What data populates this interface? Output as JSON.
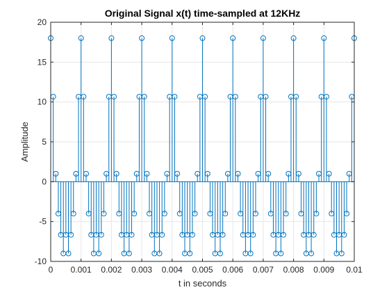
{
  "chart_data": {
    "type": "scatter",
    "style": "stem",
    "title": "Original Signal x(t) time-sampled at 12KHz",
    "xlabel": "t in seconds",
    "ylabel": "Amplitude",
    "xlim": [
      0,
      0.01
    ],
    "ylim": [
      -10,
      20
    ],
    "grid": true,
    "legend": "none",
    "xticks": [
      0,
      0.001,
      0.002,
      0.003,
      0.004,
      0.005,
      0.006,
      0.007,
      0.008,
      0.009,
      0.01
    ],
    "xtick_labels": [
      "0",
      "0.001",
      "0.002",
      "0.003",
      "0.004",
      "0.005",
      "0.006",
      "0.007",
      "0.008",
      "0.009",
      "0.01"
    ],
    "yticks": [
      -10,
      -5,
      0,
      5,
      10,
      15,
      20
    ],
    "ytick_labels": [
      "-10",
      "-5",
      "0",
      "5",
      "10",
      "15",
      "20"
    ],
    "colors": {
      "series": "#0072BD",
      "axes": "#262626",
      "grid": "#e6e6e6",
      "background": "#ffffff"
    },
    "series": [
      {
        "sample_rate_hz": 12000,
        "x": [
          0,
          8.33e-05,
          0.0001667,
          0.00025,
          0.0003333,
          0.0004167,
          0.0005,
          0.0005833,
          0.0006667,
          0.00075,
          0.0008333,
          0.0009167,
          0.001,
          0.0010833,
          0.0011667,
          0.00125,
          0.0013333,
          0.0014167,
          0.0015,
          0.0015833,
          0.0016667,
          0.00175,
          0.0018333,
          0.0019167,
          0.002,
          0.0020833,
          0.0021667,
          0.00225,
          0.0023333,
          0.0024167,
          0.0025,
          0.0025833,
          0.0026667,
          0.00275,
          0.0028333,
          0.0029167,
          0.003,
          0.0030833,
          0.0031667,
          0.00325,
          0.0033333,
          0.0034167,
          0.0035,
          0.0035833,
          0.0036667,
          0.00375,
          0.0038333,
          0.0039167,
          0.004,
          0.0040833,
          0.0041667,
          0.00425,
          0.0043333,
          0.0044167,
          0.0045,
          0.0045833,
          0.0046667,
          0.00475,
          0.0048333,
          0.0049167,
          0.005,
          0.0050833,
          0.0051667,
          0.00525,
          0.0053333,
          0.0054167,
          0.0055,
          0.0055833,
          0.0056667,
          0.00575,
          0.0058333,
          0.0059167,
          0.006,
          0.0060833,
          0.0061667,
          0.00625,
          0.0063333,
          0.0064167,
          0.0065,
          0.0065833,
          0.0066667,
          0.00675,
          0.0068333,
          0.0069167,
          0.007,
          0.0070833,
          0.0071667,
          0.00725,
          0.0073333,
          0.0074167,
          0.0075,
          0.0075833,
          0.0076667,
          0.00775,
          0.0078333,
          0.0079167,
          0.008,
          0.0080833,
          0.0081667,
          0.00825,
          0.0083333,
          0.0084167,
          0.0085,
          0.0085833,
          0.0086667,
          0.00875,
          0.0088333,
          0.0089167,
          0.009,
          0.0090833,
          0.0091667,
          0.00925,
          0.0093333,
          0.0094167,
          0.0095,
          0.0095833,
          0.0096667,
          0.00975,
          0.0098333,
          0.0099167,
          0.01
        ],
        "y": [
          18,
          10.66,
          1,
          -4,
          -6.66,
          -9,
          -6.66,
          -9,
          -6.66,
          -4,
          1,
          10.66,
          18,
          10.66,
          1,
          -4,
          -6.66,
          -9,
          -6.66,
          -9,
          -6.66,
          -4,
          1,
          10.66,
          18,
          10.66,
          1,
          -4,
          -6.66,
          -9,
          -6.66,
          -9,
          -6.66,
          -4,
          1,
          10.66,
          18,
          10.66,
          1,
          -4,
          -6.66,
          -9,
          -6.66,
          -9,
          -6.66,
          -4,
          1,
          10.66,
          18,
          10.66,
          1,
          -4,
          -6.66,
          -9,
          -6.66,
          -9,
          -6.66,
          -4,
          1,
          10.66,
          18,
          10.66,
          1,
          -4,
          -6.66,
          -9,
          -6.66,
          -9,
          -6.66,
          -4,
          1,
          10.66,
          18,
          10.66,
          1,
          -4,
          -6.66,
          -9,
          -6.66,
          -9,
          -6.66,
          -4,
          1,
          10.66,
          18,
          10.66,
          1,
          -4,
          -6.66,
          -9,
          -6.66,
          -9,
          -6.66,
          -4,
          1,
          10.66,
          18,
          10.66,
          1,
          -4,
          -6.66,
          -9,
          -6.66,
          -9,
          -6.66,
          -4,
          1,
          10.66,
          18,
          10.66,
          1,
          -4,
          -6.66,
          -9,
          -6.66,
          -9,
          -6.66,
          -4,
          1,
          10.66,
          18
        ]
      }
    ]
  }
}
